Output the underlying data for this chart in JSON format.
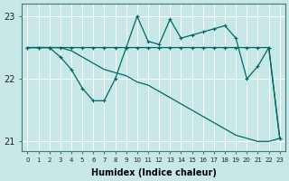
{
  "xlabel": "Humidex (Indice chaleur)",
  "bg_color": "#c8e8e8",
  "line_color": "#006666",
  "grid_color": "#ffffff",
  "xlim": [
    -0.5,
    23.5
  ],
  "ylim": [
    20.85,
    23.2
  ],
  "yticks": [
    21,
    22,
    23
  ],
  "xticks": [
    0,
    1,
    2,
    3,
    4,
    5,
    6,
    7,
    8,
    9,
    10,
    11,
    12,
    13,
    14,
    15,
    16,
    17,
    18,
    19,
    20,
    21,
    22,
    23
  ],
  "series1_x": [
    0,
    1,
    2,
    3,
    4,
    5,
    6,
    7,
    8,
    9,
    10,
    11,
    12,
    13,
    14,
    15,
    16,
    17,
    18,
    19,
    20,
    21,
    22,
    23
  ],
  "series1_y": [
    22.5,
    22.5,
    22.5,
    22.5,
    22.5,
    22.5,
    22.5,
    22.5,
    22.5,
    22.5,
    22.5,
    22.5,
    22.5,
    22.5,
    22.5,
    22.5,
    22.5,
    22.5,
    22.5,
    22.5,
    22.5,
    22.5,
    22.5,
    21.05
  ],
  "series2_x": [
    0,
    1,
    2,
    3,
    4,
    5,
    6,
    7,
    8,
    9,
    10,
    11,
    12,
    13,
    14,
    15,
    16,
    17,
    18,
    19,
    20,
    21,
    22,
    23
  ],
  "series2_y": [
    22.5,
    22.5,
    22.5,
    22.35,
    22.15,
    21.85,
    21.65,
    21.65,
    22.0,
    22.5,
    23.0,
    22.6,
    22.55,
    22.95,
    22.65,
    22.7,
    22.75,
    22.8,
    22.85,
    22.65,
    22.0,
    22.2,
    22.5,
    21.05
  ],
  "series3_x": [
    0,
    1,
    2,
    3,
    4,
    5,
    6,
    7,
    8,
    9,
    10,
    11,
    12,
    13,
    14,
    15,
    16,
    17,
    18,
    19,
    20,
    21,
    22,
    23
  ],
  "series3_y": [
    22.5,
    22.5,
    22.5,
    22.5,
    22.45,
    22.35,
    22.25,
    22.15,
    22.1,
    22.05,
    21.95,
    21.9,
    21.8,
    21.7,
    21.6,
    21.5,
    21.4,
    21.3,
    21.2,
    21.1,
    21.05,
    21.0,
    21.0,
    21.05
  ],
  "marker": "+",
  "markersize": 3.5,
  "linewidth": 0.9
}
